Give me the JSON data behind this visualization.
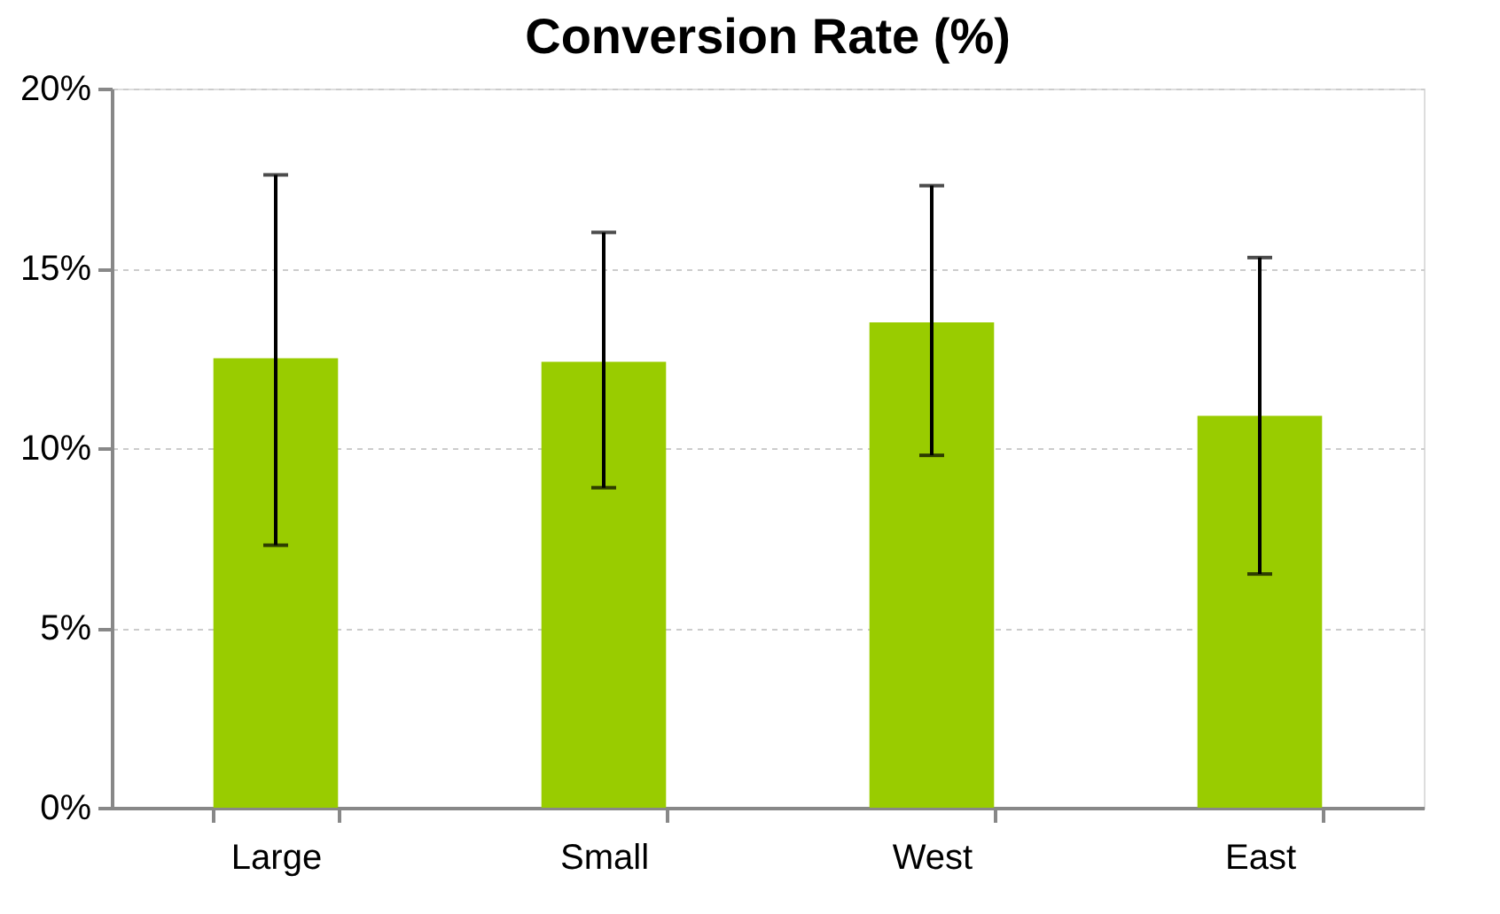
{
  "chart_data": {
    "type": "bar",
    "title": "Conversion Rate (%)",
    "categories": [
      "Large",
      "Small",
      "West",
      "East"
    ],
    "values": [
      12.5,
      12.4,
      13.5,
      10.9
    ],
    "errors": [
      [
        7.3,
        17.6
      ],
      [
        8.9,
        16.0
      ],
      [
        9.8,
        17.3
      ],
      [
        6.5,
        15.3
      ]
    ],
    "color": "#99cc00",
    "ylim": [
      0,
      20
    ],
    "yticks": [
      {
        "value": 0,
        "label": "0%"
      },
      {
        "value": 5,
        "label": "5%"
      },
      {
        "value": 10,
        "label": "10%"
      },
      {
        "value": 15,
        "label": "15%"
      },
      {
        "value": 20,
        "label": "20%"
      }
    ],
    "grid": "y"
  }
}
